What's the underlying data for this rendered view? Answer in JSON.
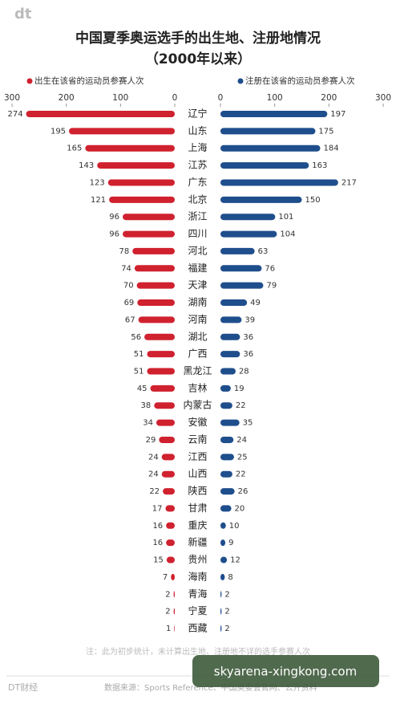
{
  "logo": "dt",
  "chart_data": {
    "type": "butterfly",
    "title": "中国夏季奥运选手的出生地、注册地情况",
    "subtitle": "（2000年以来）",
    "categories": [
      "辽宁",
      "山东",
      "上海",
      "江苏",
      "广东",
      "北京",
      "浙江",
      "四川",
      "河北",
      "福建",
      "天津",
      "湖南",
      "河南",
      "湖北",
      "广西",
      "黑龙江",
      "吉林",
      "内蒙古",
      "安徽",
      "云南",
      "江西",
      "山西",
      "陕西",
      "甘肃",
      "重庆",
      "新疆",
      "贵州",
      "海南",
      "青海",
      "宁夏",
      "西藏"
    ],
    "series": [
      {
        "name": "出生在该省的运动员参赛人次",
        "color": "#d0212f",
        "values": [
          274,
          195,
          165,
          143,
          123,
          121,
          96,
          96,
          78,
          74,
          70,
          69,
          67,
          56,
          51,
          51,
          45,
          38,
          34,
          29,
          24,
          24,
          22,
          17,
          16,
          16,
          15,
          7,
          2,
          2,
          1
        ]
      },
      {
        "name": "注册在该省的运动员参赛人次",
        "color": "#1f4e8c",
        "values": [
          197,
          175,
          184,
          163,
          217,
          150,
          101,
          104,
          63,
          76,
          79,
          49,
          39,
          36,
          36,
          28,
          19,
          22,
          35,
          24,
          25,
          22,
          26,
          20,
          10,
          9,
          12,
          8,
          2,
          2,
          2
        ]
      }
    ],
    "xlim": [
      0,
      300
    ],
    "xticks": [
      0,
      100,
      200,
      300
    ],
    "note": "注：此为初步统计，未计算出生地、注册地不详的选手参赛人次",
    "source": "数据来源：Sports Reference、中国奥委会官网、公开资料"
  },
  "footer": "DT财经",
  "watermark": "skyarena-xingkong.com"
}
